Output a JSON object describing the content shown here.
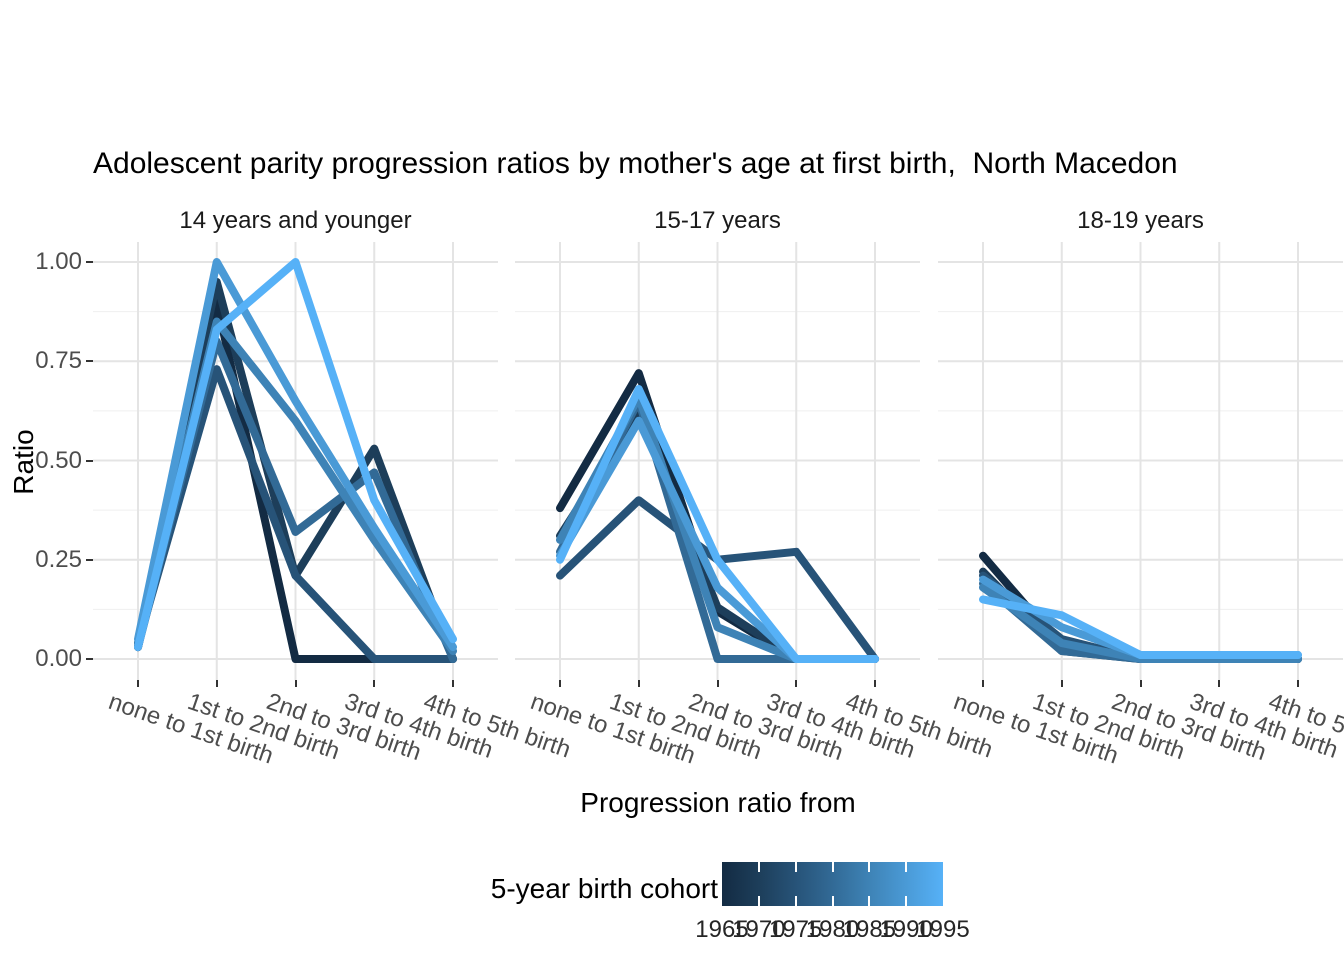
{
  "title": "Adolescent parity progression ratios by mother's age at first birth,  North Macedon",
  "y_axis": {
    "title": "Ratio",
    "ticks": [
      {
        "label": "1.00",
        "value": 1.0
      },
      {
        "label": "0.75",
        "value": 0.75
      },
      {
        "label": "0.50",
        "value": 0.5
      },
      {
        "label": "0.25",
        "value": 0.25
      },
      {
        "label": "0.00",
        "value": 0.0
      }
    ]
  },
  "x_axis": {
    "title": "Progression ratio from"
  },
  "legend": {
    "title": "5-year birth cohort",
    "ticks": [
      "1965",
      "1970",
      "1975",
      "1980",
      "1985",
      "1990",
      "1995"
    ],
    "gradient_low": "#132B43",
    "gradient_high": "#56B1F7"
  },
  "chart_data": {
    "type": "line",
    "title": "Adolescent parity progression ratios by mother's age at first birth,  North Macedonia",
    "xlabel": "Progression ratio from",
    "ylabel": "Ratio",
    "ylim": [
      0,
      1
    ],
    "ytick_values": [
      0,
      0.25,
      0.5,
      0.75,
      1.0
    ],
    "grid": true,
    "legend_position": "bottom",
    "categories": [
      "none to 1st birth",
      "1st to 2nd birth",
      "2nd to 3rd birth",
      "3rd to 4th birth",
      "4th to 5th birth"
    ],
    "cohort_colors": [
      "#132B43",
      "#1D3E5A",
      "#275378",
      "#326A96",
      "#3E83B6",
      "#4A9AD6",
      "#56B1F7"
    ],
    "facets": [
      {
        "label": "14 years and younger",
        "series": [
          {
            "name": "1965",
            "values": [
              0.03,
              0.9,
              0.0,
              0.0,
              0.0
            ]
          },
          {
            "name": "1970",
            "values": [
              0.03,
              0.95,
              0.21,
              0.53,
              0.0
            ]
          },
          {
            "name": "1975",
            "values": [
              0.04,
              0.73,
              0.21,
              0.0,
              0.0
            ]
          },
          {
            "name": "1980",
            "values": [
              0.03,
              0.8,
              0.32,
              0.47,
              0.0
            ]
          },
          {
            "name": "1985",
            "values": [
              0.04,
              0.85,
              0.6,
              0.3,
              0.02
            ]
          },
          {
            "name": "1990",
            "values": [
              0.05,
              1.0,
              0.65,
              0.33,
              0.03
            ]
          },
          {
            "name": "1995",
            "values": [
              0.03,
              0.83,
              1.0,
              0.4,
              0.05
            ]
          }
        ]
      },
      {
        "label": "15-17 years",
        "series": [
          {
            "name": "1965",
            "values": [
              0.38,
              0.72,
              0.12,
              0.0,
              0.0
            ]
          },
          {
            "name": "1970",
            "values": [
              0.31,
              0.62,
              0.13,
              0.0,
              0.0
            ]
          },
          {
            "name": "1975",
            "values": [
              0.21,
              0.4,
              0.25,
              0.27,
              0.0
            ]
          },
          {
            "name": "1980",
            "values": [
              0.27,
              0.65,
              0.0,
              0.0,
              0.0
            ]
          },
          {
            "name": "1985",
            "values": [
              0.3,
              0.66,
              0.08,
              0.0,
              0.0
            ]
          },
          {
            "name": "1990",
            "values": [
              0.26,
              0.6,
              0.18,
              0.0,
              0.0
            ]
          },
          {
            "name": "1995",
            "values": [
              0.25,
              0.68,
              0.25,
              0.0,
              0.0
            ]
          }
        ]
      },
      {
        "label": "18-19 years",
        "series": [
          {
            "name": "1965",
            "values": [
              0.26,
              0.03,
              0.0,
              0.0,
              0.0
            ]
          },
          {
            "name": "1970",
            "values": [
              0.22,
              0.02,
              0.0,
              0.0,
              0.0
            ]
          },
          {
            "name": "1975",
            "values": [
              0.21,
              0.05,
              0.0,
              0.0,
              0.0
            ]
          },
          {
            "name": "1980",
            "values": [
              0.19,
              0.02,
              0.0,
              0.0,
              0.0
            ]
          },
          {
            "name": "1985",
            "values": [
              0.18,
              0.04,
              0.0,
              0.0,
              0.0
            ]
          },
          {
            "name": "1990",
            "values": [
              0.2,
              0.08,
              0.01,
              0.01,
              0.01
            ]
          },
          {
            "name": "1995",
            "values": [
              0.15,
              0.11,
              0.01,
              0.01,
              0.01
            ]
          }
        ]
      }
    ]
  }
}
